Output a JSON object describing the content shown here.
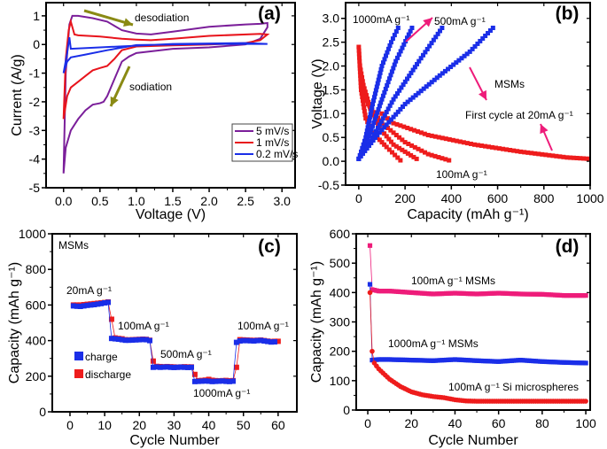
{
  "chart_data": [
    {
      "panel": "(a)",
      "type": "line",
      "xlabel": "Voltage (V)",
      "ylabel": "Current (A/g)",
      "xlim": [
        -0.24,
        3.18
      ],
      "ylim": [
        -5,
        1.46
      ],
      "xticks": [
        0.0,
        0.5,
        1.0,
        1.5,
        2.0,
        2.5,
        3.0
      ],
      "xtick_labels": [
        "0.0",
        "0.5",
        "1.0",
        "1.5",
        "2.0",
        "2.5",
        "3.0"
      ],
      "yticks": [
        -5,
        -4,
        -3,
        -2,
        -1,
        0,
        1
      ],
      "ytick_labels": [
        "-5",
        "-4",
        "-3",
        "-2",
        "-1",
        "0",
        "1"
      ],
      "legend": "bottom-right",
      "series": [
        {
          "name": "5 mV/s",
          "color": "#7b1f9a",
          "points": [
            [
              0.0,
              -4.5
            ],
            [
              0.03,
              -3.6
            ],
            [
              0.1,
              -3.0
            ],
            [
              0.2,
              -2.6
            ],
            [
              0.3,
              -2.3
            ],
            [
              0.4,
              -2.1
            ],
            [
              0.5,
              -2.05
            ],
            [
              0.55,
              -2.0
            ],
            [
              0.6,
              -1.8
            ],
            [
              0.7,
              -1.2
            ],
            [
              0.8,
              -0.6
            ],
            [
              0.9,
              -0.42
            ],
            [
              1.0,
              -0.3
            ],
            [
              1.5,
              -0.15
            ],
            [
              2.0,
              -0.1
            ],
            [
              2.5,
              0.0
            ],
            [
              2.7,
              0.2
            ],
            [
              2.8,
              0.6
            ],
            [
              2.8,
              0.75
            ],
            [
              2.7,
              0.72
            ],
            [
              2.5,
              0.7
            ],
            [
              2.0,
              0.62
            ],
            [
              1.5,
              0.45
            ],
            [
              1.2,
              0.35
            ],
            [
              1.0,
              0.38
            ],
            [
              0.8,
              0.5
            ],
            [
              0.6,
              0.8
            ],
            [
              0.4,
              0.92
            ],
            [
              0.2,
              1.0
            ],
            [
              0.12,
              1.0
            ],
            [
              0.08,
              0.7
            ],
            [
              0.03,
              -1.0
            ],
            [
              0.0,
              -4.5
            ]
          ]
        },
        {
          "name": "1 mV/s",
          "color": "#e8141c",
          "points": [
            [
              0.0,
              -2.6
            ],
            [
              0.05,
              -1.8
            ],
            [
              0.1,
              -1.5
            ],
            [
              0.2,
              -1.3
            ],
            [
              0.3,
              -1.1
            ],
            [
              0.4,
              -0.9
            ],
            [
              0.5,
              -0.82
            ],
            [
              0.6,
              -0.75
            ],
            [
              0.7,
              -0.5
            ],
            [
              0.8,
              -0.2
            ],
            [
              1.0,
              -0.07
            ],
            [
              1.5,
              -0.03
            ],
            [
              2.0,
              0.0
            ],
            [
              2.5,
              0.05
            ],
            [
              2.7,
              0.15
            ],
            [
              2.8,
              0.35
            ],
            [
              2.7,
              0.37
            ],
            [
              2.0,
              0.3
            ],
            [
              1.5,
              0.2
            ],
            [
              1.2,
              0.15
            ],
            [
              1.0,
              0.17
            ],
            [
              0.8,
              0.2
            ],
            [
              0.5,
              0.28
            ],
            [
              0.2,
              0.32
            ],
            [
              0.15,
              0.35
            ],
            [
              0.1,
              0.8
            ],
            [
              0.07,
              0.5
            ],
            [
              0.03,
              -0.5
            ],
            [
              0.0,
              -2.6
            ]
          ]
        },
        {
          "name": "0.2 mV/s",
          "color": "#1a2ee8",
          "points": [
            [
              0.0,
              -1.0
            ],
            [
              0.05,
              -0.6
            ],
            [
              0.1,
              -0.45
            ],
            [
              0.3,
              -0.35
            ],
            [
              0.6,
              -0.2
            ],
            [
              1.0,
              -0.02
            ],
            [
              2.0,
              0.02
            ],
            [
              2.8,
              0.02
            ],
            [
              2.5,
              0.05
            ],
            [
              1.5,
              0.02
            ],
            [
              0.5,
              -0.1
            ],
            [
              0.1,
              -0.15
            ],
            [
              0.08,
              0.25
            ],
            [
              0.05,
              -0.3
            ],
            [
              0.0,
              -1.0
            ]
          ]
        }
      ],
      "annotations": [
        {
          "text": "desodiation"
        },
        {
          "text": "sodiation"
        }
      ],
      "arrow_color": "#8a8a14"
    },
    {
      "panel": "(b)",
      "type": "scatter",
      "xlabel": "Capacity (mAh g⁻¹)",
      "ylabel": "Voltage (V)",
      "xlim": [
        -57,
        1000
      ],
      "ylim": [
        -0.5,
        3.33
      ],
      "xticks": [
        0,
        200,
        400,
        600,
        800,
        1000
      ],
      "xtick_labels": [
        "0",
        "200",
        "400",
        "600",
        "800",
        "1000"
      ],
      "yticks": [
        -0.5,
        0.0,
        0.5,
        1.0,
        1.5,
        2.0,
        2.5,
        3.0
      ],
      "ytick_labels": [
        "-0.5",
        "0.0",
        "0.5",
        "1.0",
        "1.5",
        "2.0",
        "2.5",
        "3.0"
      ],
      "charge_color": "#1a2ee8",
      "discharge_color": "#ee1c1c",
      "arrow_color": "#ee1c7a",
      "charge_curves": [
        [
          [
            0,
            0.05
          ],
          [
            30,
            0.5
          ],
          [
            60,
            1.2
          ],
          [
            100,
            2.0
          ],
          [
            140,
            2.5
          ],
          [
            170,
            2.8
          ]
        ],
        [
          [
            0,
            0.05
          ],
          [
            50,
            0.6
          ],
          [
            100,
            1.3
          ],
          [
            160,
            2.1
          ],
          [
            230,
            2.8
          ]
        ],
        [
          [
            0,
            0.05
          ],
          [
            60,
            0.5
          ],
          [
            150,
            1.3
          ],
          [
            260,
            2.1
          ],
          [
            360,
            2.8
          ]
        ],
        [
          [
            0,
            0.05
          ],
          [
            80,
            0.55
          ],
          [
            200,
            1.2
          ],
          [
            350,
            1.8
          ],
          [
            480,
            2.3
          ],
          [
            580,
            2.8
          ]
        ]
      ],
      "discharge_curves": [
        [
          [
            0,
            2.4
          ],
          [
            10,
            1.5
          ],
          [
            30,
            0.9
          ],
          [
            60,
            0.6
          ],
          [
            120,
            0.3
          ],
          [
            180,
            0.02
          ]
        ],
        [
          [
            5,
            2.0
          ],
          [
            20,
            1.6
          ],
          [
            50,
            1.1
          ],
          [
            90,
            0.7
          ],
          [
            150,
            0.35
          ],
          [
            250,
            0.05
          ]
        ],
        [
          [
            10,
            1.5
          ],
          [
            40,
            1.2
          ],
          [
            100,
            0.8
          ],
          [
            200,
            0.4
          ],
          [
            300,
            0.15
          ],
          [
            390,
            0.02
          ]
        ],
        [
          [
            100,
            1.0
          ],
          [
            150,
            0.8
          ],
          [
            300,
            0.55
          ],
          [
            500,
            0.35
          ],
          [
            700,
            0.2
          ],
          [
            900,
            0.08
          ],
          [
            1000,
            0.05
          ]
        ]
      ],
      "annotations": [
        {
          "text": "1000mA g⁻¹"
        },
        {
          "text": "500mA g⁻¹"
        },
        {
          "text": "MSMs"
        },
        {
          "text": "First cycle at 20mA g⁻¹"
        },
        {
          "text": "100mA g⁻¹"
        }
      ]
    },
    {
      "panel": "(c)",
      "type": "scatter",
      "xlabel": "Cycle Number",
      "ylabel": "Capacity (mAh g⁻¹)",
      "xlim": [
        -5.1,
        65.4
      ],
      "ylim": [
        0,
        1000
      ],
      "xticks": [
        0,
        10,
        20,
        30,
        40,
        50,
        60
      ],
      "xtick_labels": [
        "0",
        "10",
        "20",
        "30",
        "40",
        "50",
        "60"
      ],
      "yticks": [
        0,
        200,
        400,
        600,
        800,
        1000
      ],
      "ytick_labels": [
        "0",
        "200",
        "400",
        "600",
        "800",
        "1000"
      ],
      "legend": "left",
      "series": [
        {
          "name": "discharge",
          "color": "#ee1c1c",
          "values": [
            600,
            600,
            600,
            602,
            604,
            606,
            608,
            610,
            612,
            614,
            617,
            520,
            415,
            412,
            410,
            405,
            404,
            405,
            406,
            407,
            408,
            407,
            402,
            285,
            255,
            254,
            253,
            254,
            253,
            252,
            251,
            252,
            253,
            252,
            252,
            210,
            175,
            176,
            178,
            182,
            177,
            175,
            174,
            175,
            176,
            174,
            175,
            250,
            405,
            404,
            403,
            402,
            401,
            402,
            403,
            400,
            397,
            395,
            396,
            396
          ]
        },
        {
          "name": "charge",
          "color": "#1a2ee8",
          "values": [
            595,
            593,
            592,
            595,
            598,
            600,
            602,
            605,
            608,
            612,
            615,
            412,
            410,
            408,
            405,
            402,
            402,
            403,
            404,
            405,
            406,
            405,
            400,
            250,
            252,
            250,
            251,
            252,
            250,
            249,
            250,
            251,
            250,
            249,
            250,
            170,
            171,
            172,
            173,
            172,
            170,
            171,
            172,
            173,
            171,
            170,
            172,
            390,
            398,
            400,
            400,
            399,
            398,
            400,
            401,
            398,
            395,
            392,
            393
          ]
        }
      ],
      "annotations": [
        {
          "text": "MSMs"
        },
        {
          "text": "20mA g⁻¹"
        },
        {
          "text": "100mA g⁻¹"
        },
        {
          "text": "500mA g⁻¹"
        },
        {
          "text": "1000mA g⁻¹"
        },
        {
          "text": "100mA g⁻¹"
        }
      ]
    },
    {
      "panel": "(d)",
      "type": "scatter",
      "xlabel": "Cycle Number",
      "ylabel": "Capacity (mAh g⁻¹)",
      "xlim": [
        -5.3,
        102
      ],
      "ylim": [
        0,
        600
      ],
      "xticks": [
        0,
        20,
        40,
        60,
        80,
        100
      ],
      "xtick_labels": [
        "0",
        "20",
        "40",
        "60",
        "80",
        "100"
      ],
      "yticks": [
        0,
        100,
        200,
        300,
        400,
        500,
        600
      ],
      "ytick_labels": [
        "0",
        "100",
        "200",
        "300",
        "400",
        "500",
        "600"
      ],
      "series": [
        {
          "color": "#ee1c7a",
          "marker": "square",
          "x": [
            1,
            2,
            5,
            10,
            20,
            30,
            40,
            50,
            60,
            70,
            80,
            90,
            100
          ],
          "y": [
            560,
            410,
            405,
            405,
            400,
            395,
            398,
            395,
            398,
            395,
            394,
            390,
            390
          ]
        },
        {
          "color": "#1a2ee8",
          "marker": "square",
          "x": [
            1,
            2,
            5,
            10,
            20,
            30,
            40,
            50,
            60,
            70,
            80,
            90,
            100
          ],
          "y": [
            428,
            170,
            172,
            172,
            170,
            168,
            172,
            168,
            165,
            170,
            165,
            162,
            160
          ]
        },
        {
          "color": "#ee1c1c",
          "marker": "circle",
          "x": [
            1,
            2,
            3,
            5,
            10,
            15,
            20,
            25,
            30,
            35,
            40,
            45,
            50,
            60,
            70,
            80,
            90,
            100
          ],
          "y": [
            400,
            200,
            160,
            140,
            105,
            80,
            62,
            52,
            46,
            42,
            35,
            31,
            30,
            30,
            30,
            30,
            30,
            30
          ]
        }
      ],
      "annotations": [
        {
          "text": "100mA g⁻¹  MSMs"
        },
        {
          "text": "1000mA g⁻¹  MSMs"
        },
        {
          "text": "100mA g⁻¹ Si microspheres"
        }
      ]
    }
  ]
}
